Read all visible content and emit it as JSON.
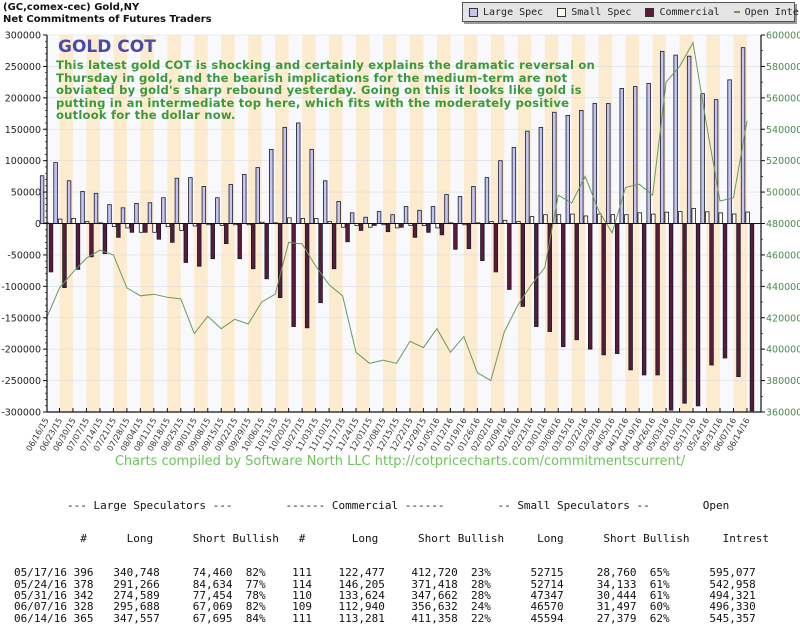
{
  "header": {
    "line1": "(GC,comex-cec) Gold,NY",
    "line2": "Net Commitments of Futures Traders"
  },
  "legend": [
    {
      "label": "Large Spec",
      "color": "#c4c4f0",
      "kind": "box"
    },
    {
      "label": "Small Spec",
      "color": "#fffef0",
      "kind": "box"
    },
    {
      "label": "Commercial",
      "color": "#5a1a3a",
      "kind": "box"
    },
    {
      "label": "Open Interest",
      "color": "#6a9a5a",
      "kind": "line"
    }
  ],
  "annotation": {
    "title": "GOLD COT",
    "text": "This latest gold COT is shocking and certainly explains the dramatic reversal on Thursday in gold, and the bearish implications for the medium-term are not obviated by gold's sharp rebound yesterday. Going on this it looks like gold is putting in an intermediate top here, which fits with the moderately positive outlook for the dollar now.",
    "title_color": "#4a4aa8",
    "text_color": "#3a9a3a"
  },
  "credit": "Charts compiled by Software North LLC  http://cotpricecharts.com/commitmentscurrent/",
  "chart_data": {
    "type": "bar",
    "title": "Net Commitments of Futures Traders",
    "xlabel": "",
    "ylabel": "",
    "y2label": "",
    "ylim": [
      -300000,
      300000
    ],
    "y2lim": [
      360000,
      600000
    ],
    "yticks": [
      "300000",
      "250000",
      "200000",
      "150000",
      "100000",
      "50000",
      "0",
      "-50000",
      "-100000",
      "-150000",
      "-200000",
      "-250000",
      "-300000"
    ],
    "y2ticks": [
      "600000",
      "580000",
      "560000",
      "540000",
      "520000",
      "500000",
      "480000",
      "460000",
      "440000",
      "420000",
      "400000",
      "380000",
      "360000"
    ],
    "grid": true,
    "legend_position": "top-right",
    "categories": [
      "06/16/15",
      "06/23/15",
      "06/30/15",
      "07/07/15",
      "07/14/15",
      "07/21/15",
      "07/28/15",
      "08/04/15",
      "08/11/15",
      "08/18/15",
      "08/25/15",
      "09/01/15",
      "09/08/15",
      "09/15/15",
      "09/22/15",
      "09/29/15",
      "10/06/15",
      "10/13/15",
      "10/20/15",
      "10/27/15",
      "11/03/15",
      "11/10/15",
      "11/17/15",
      "11/24/15",
      "12/01/15",
      "12/08/15",
      "12/15/15",
      "12/22/15",
      "12/29/15",
      "01/05/16",
      "01/12/16",
      "01/19/16",
      "01/26/16",
      "02/02/16",
      "02/09/16",
      "02/16/16",
      "02/23/16",
      "03/01/16",
      "03/08/16",
      "03/15/16",
      "03/22/16",
      "03/29/16",
      "04/05/16",
      "04/12/16",
      "04/19/16",
      "04/26/16",
      "05/03/16",
      "05/10/16",
      "05/17/16",
      "05/24/16",
      "05/31/16",
      "06/07/16",
      "06/14/16"
    ],
    "series": [
      {
        "name": "Large Spec",
        "axis": "left",
        "type": "bar",
        "values": [
          76000,
          97000,
          68000,
          51000,
          48000,
          30000,
          25000,
          32000,
          33000,
          41000,
          72000,
          73000,
          59000,
          41000,
          62000,
          78000,
          89000,
          118000,
          153000,
          160000,
          118000,
          68000,
          35000,
          17000,
          10000,
          19000,
          14000,
          27000,
          21000,
          27000,
          46000,
          43000,
          59000,
          73000,
          100000,
          121000,
          147000,
          153000,
          177000,
          172000,
          180000,
          191000,
          191000,
          215000,
          218000,
          223000,
          274000,
          268000,
          266288,
          206632,
          197135,
          228619,
          279862
        ]
      },
      {
        "name": "Small Spec",
        "axis": "left",
        "type": "bar",
        "values": [
          1000,
          7000,
          8000,
          3000,
          1000,
          -5000,
          -7000,
          -14000,
          -14000,
          -5000,
          -11000,
          -4000,
          -2000,
          -3000,
          -2000,
          -2000,
          2000,
          1000,
          9000,
          8000,
          8000,
          3000,
          -6000,
          -3000,
          -6000,
          -2000,
          -7000,
          -3000,
          -3000,
          -7000,
          1000,
          -2000,
          1000,
          3000,
          5000,
          3000,
          11000,
          14000,
          14000,
          15000,
          12000,
          15000,
          14000,
          14000,
          17000,
          15000,
          18000,
          19000,
          23955,
          18581,
          16903,
          15073,
          18215
        ]
      },
      {
        "name": "Commercial",
        "axis": "left",
        "type": "bar",
        "values": [
          -77000,
          -102000,
          -73000,
          -53000,
          -48000,
          -22000,
          -14000,
          -14000,
          -25000,
          -30000,
          -62000,
          -68000,
          -56000,
          -32000,
          -56000,
          -72000,
          -88000,
          -118000,
          -164000,
          -166000,
          -126000,
          -72000,
          -29000,
          -11000,
          -3000,
          -13000,
          -6000,
          -22000,
          -14000,
          -18000,
          -41000,
          -40000,
          -59000,
          -77000,
          -105000,
          -132000,
          -164000,
          -172000,
          -196000,
          -185000,
          -200000,
          -209000,
          -207000,
          -233000,
          -241000,
          -241000,
          -297000,
          -286000,
          -290243,
          -225213,
          -214038,
          -243692,
          -298077
        ]
      },
      {
        "name": "Open Interest",
        "axis": "right",
        "type": "line",
        "values": [
          419000,
          439000,
          449000,
          458000,
          463000,
          460000,
          439000,
          434000,
          435000,
          433000,
          432000,
          410000,
          421000,
          413000,
          419000,
          416000,
          430000,
          435000,
          468000,
          467000,
          453000,
          441000,
          434000,
          398000,
          391000,
          393000,
          391000,
          405000,
          401000,
          413000,
          398000,
          408000,
          385000,
          380000,
          411000,
          428000,
          441000,
          452000,
          498000,
          493000,
          510000,
          488000,
          474000,
          503000,
          505000,
          498000,
          570000,
          580000,
          595077,
          542958,
          494321,
          496330,
          545357
        ]
      }
    ],
    "colors": {
      "large_spec": "#c4c4f0",
      "small_spec": "#fffef0",
      "commercial": "#5a1a3a",
      "open_interest": "#6a9a5a",
      "band": "#fdebd0",
      "axis_right_labels": "#4a8a4a"
    }
  },
  "table": {
    "group_header": "        --- Large Speculators ---        ------ Commercial ------        -- Small Speculators --        Open",
    "col_header": "          #      Long      Short Bullish   #       Long      Short Bullish     Long      Short Bullish     Intrest",
    "rows": [
      {
        "date": "05/17/16",
        "ls_n": "396",
        "ls_long": "340,748",
        "ls_short": "74,460",
        "ls_bull": "82%",
        "c_n": "111",
        "c_long": "122,477",
        "c_short": "412,720",
        "c_bull": "23%",
        "ss_long": "52715",
        "ss_short": "28,760",
        "ss_bull": "65%",
        "oi": "595,077"
      },
      {
        "date": "05/24/16",
        "ls_n": "378",
        "ls_long": "291,266",
        "ls_short": "84,634",
        "ls_bull": "77%",
        "c_n": "114",
        "c_long": "146,205",
        "c_short": "371,418",
        "c_bull": "28%",
        "ss_long": "52714",
        "ss_short": "34,133",
        "ss_bull": "61%",
        "oi": "542,958"
      },
      {
        "date": "05/31/16",
        "ls_n": "342",
        "ls_long": "274,589",
        "ls_short": "77,454",
        "ls_bull": "78%",
        "c_n": "110",
        "c_long": "133,624",
        "c_short": "347,662",
        "c_bull": "28%",
        "ss_long": "47347",
        "ss_short": "30,444",
        "ss_bull": "61%",
        "oi": "494,321"
      },
      {
        "date": "06/07/16",
        "ls_n": "328",
        "ls_long": "295,688",
        "ls_short": "67,069",
        "ls_bull": "82%",
        "c_n": "109",
        "c_long": "112,940",
        "c_short": "356,632",
        "c_bull": "24%",
        "ss_long": "46570",
        "ss_short": "31,497",
        "ss_bull": "60%",
        "oi": "496,330"
      },
      {
        "date": "06/14/16",
        "ls_n": "365",
        "ls_long": "347,557",
        "ls_short": "67,695",
        "ls_bull": "84%",
        "c_n": "111",
        "c_long": "113,281",
        "c_short": "411,358",
        "c_bull": "22%",
        "ss_long": "45594",
        "ss_short": "27,379",
        "ss_bull": "62%",
        "oi": "545,357"
      }
    ]
  }
}
